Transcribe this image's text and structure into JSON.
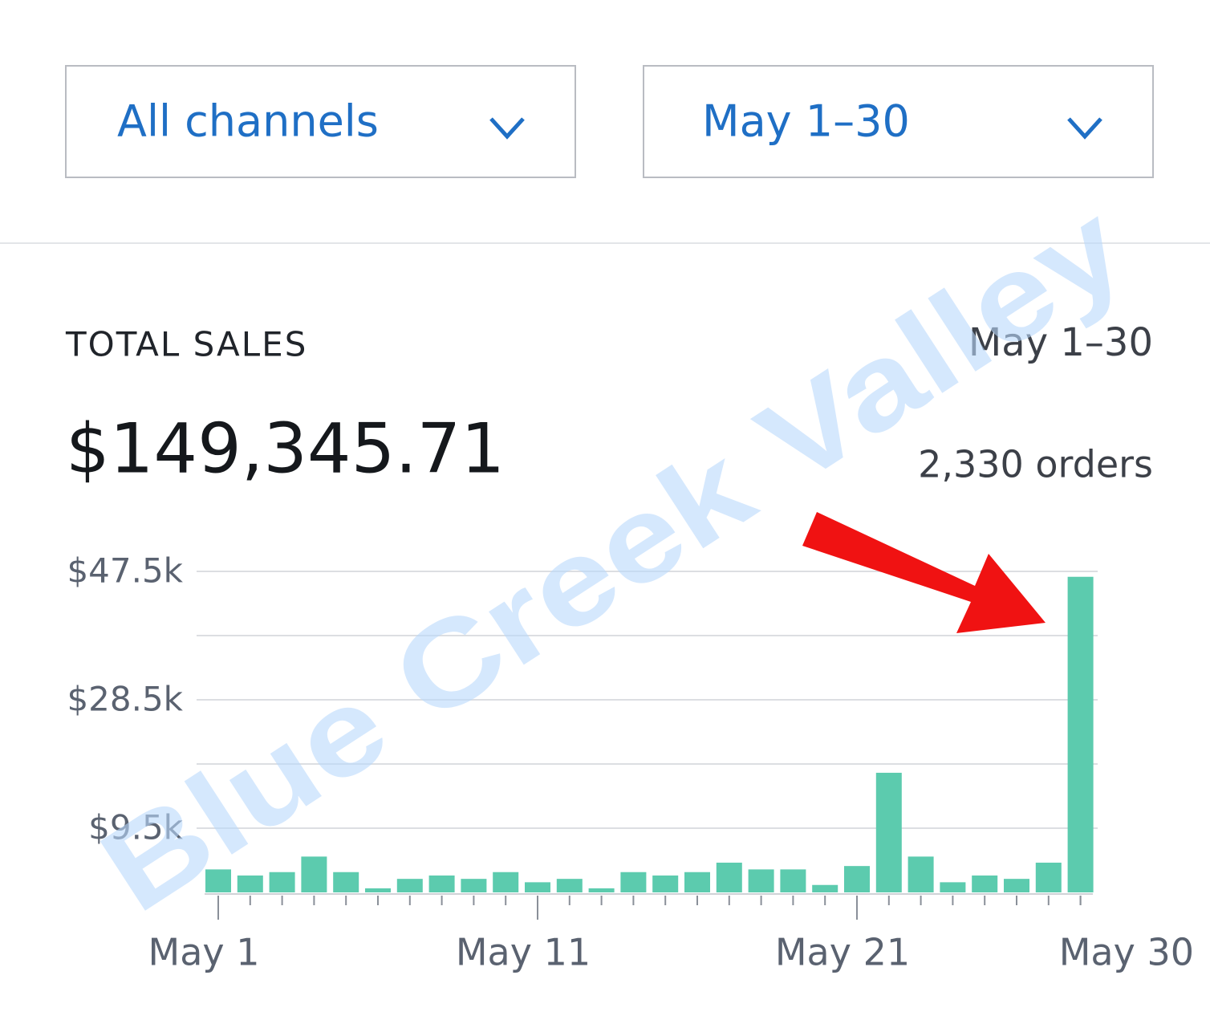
{
  "filters": {
    "channel": "All channels",
    "date_range": "May 1–30"
  },
  "summary": {
    "label": "TOTAL SALES",
    "period": "May 1–30",
    "total": "$149,345.71",
    "orders": "2,330 orders"
  },
  "watermark": "Blue Creek Valley",
  "chart_data": {
    "type": "bar",
    "categories": [
      "May 1",
      null,
      null,
      null,
      null,
      null,
      null,
      null,
      null,
      null,
      "May 11",
      null,
      null,
      null,
      null,
      null,
      null,
      null,
      null,
      null,
      "May 21",
      null,
      null,
      null,
      null,
      null,
      null,
      null
    ],
    "x_end_label": "May 30",
    "values": [
      3400,
      2500,
      3000,
      5300,
      3000,
      600,
      2000,
      2500,
      2000,
      3000,
      1500,
      2000,
      600,
      3000,
      2500,
      3000,
      4400,
      3400,
      3400,
      1100,
      3900,
      17700,
      5300,
      1500,
      2500,
      2000,
      4400,
      46700
    ],
    "color": "#5ccbae",
    "ylim": [
      0,
      47500
    ],
    "yticks": [
      {
        "value": 9500,
        "label": "$9.5k"
      },
      {
        "value": 28500,
        "label": "$28.5k"
      },
      {
        "value": 47500,
        "label": "$47.5k"
      }
    ],
    "ygrid": [
      9500,
      19000,
      28500,
      38000,
      47500
    ],
    "grid": true
  }
}
